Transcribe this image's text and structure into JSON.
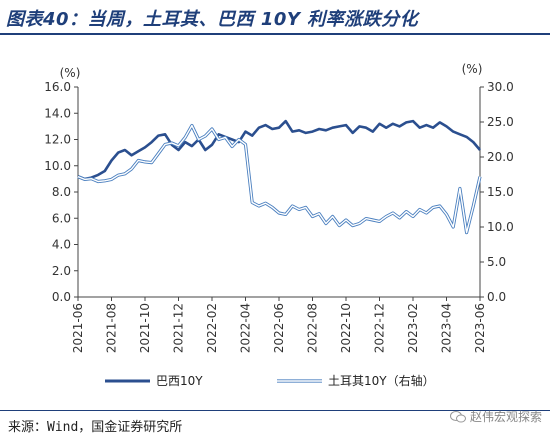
{
  "title": "图表40：当周，土耳其、巴西 10Y 利率涨跌分化",
  "source": "来源：Wind，国金证券研究所",
  "watermark": "赵伟宏观探索",
  "colors": {
    "primary": "#2b4f8f",
    "secondary": "#8fc0e6",
    "accent": "#1f3f7a"
  },
  "chart_data": {
    "type": "line",
    "x_ticks": [
      "2021-06",
      "2021-08",
      "2021-10",
      "2021-12",
      "2022-02",
      "2022-04",
      "2022-06",
      "2022-08",
      "2022-10",
      "2022-12",
      "2023-02",
      "2023-04",
      "2023-06"
    ],
    "left_axis": {
      "unit": "(%)",
      "ylim": [
        0,
        16
      ],
      "ticks": [
        "0.0",
        "2.0",
        "4.0",
        "6.0",
        "8.0",
        "10.0",
        "12.0",
        "14.0",
        "16.0"
      ]
    },
    "right_axis": {
      "unit": "(%)",
      "ylim": [
        0,
        30
      ],
      "ticks": [
        "0.0",
        "5.0",
        "10.0",
        "15.0",
        "20.0",
        "25.0",
        "30.0"
      ]
    },
    "series": [
      {
        "name": "巴西10Y",
        "axis": "left",
        "x": [
          0,
          0.2,
          0.4,
          0.6,
          0.8,
          1.0,
          1.2,
          1.4,
          1.6,
          1.8,
          2.0,
          2.2,
          2.4,
          2.6,
          2.8,
          3.0,
          3.2,
          3.4,
          3.6,
          3.8,
          4.0,
          4.2,
          4.4,
          4.6,
          4.8,
          5.0,
          5.2,
          5.4,
          5.6,
          5.8,
          6.0,
          6.2,
          6.4,
          6.6,
          6.8,
          7.0,
          7.2,
          7.4,
          7.6,
          7.8,
          8.0,
          8.2,
          8.4,
          8.6,
          8.8,
          9.0,
          9.2,
          9.4,
          9.6,
          9.8,
          10.0,
          10.2,
          10.4,
          10.6,
          10.8,
          11.0,
          11.2,
          11.4,
          11.6,
          11.8,
          12.0
        ],
        "values": [
          9.2,
          9.0,
          9.1,
          9.3,
          9.6,
          10.4,
          11.0,
          11.2,
          10.8,
          11.1,
          11.4,
          11.8,
          12.3,
          12.4,
          11.6,
          11.2,
          11.8,
          11.5,
          12.0,
          11.2,
          11.6,
          12.4,
          12.2,
          12.0,
          11.8,
          12.6,
          12.3,
          12.9,
          13.1,
          12.8,
          12.9,
          13.4,
          12.6,
          12.7,
          12.5,
          12.6,
          12.8,
          12.7,
          12.9,
          13.0,
          13.1,
          12.5,
          13.0,
          12.9,
          12.6,
          13.2,
          12.9,
          13.2,
          13.0,
          13.3,
          13.4,
          12.9,
          13.1,
          12.9,
          13.3,
          13.0,
          12.6,
          12.4,
          12.2,
          11.8,
          11.2
        ]
      },
      {
        "name": "土耳其10Y（右轴）",
        "axis": "right",
        "x": [
          0,
          0.2,
          0.4,
          0.6,
          0.8,
          1.0,
          1.2,
          1.4,
          1.6,
          1.8,
          2.0,
          2.2,
          2.4,
          2.6,
          2.8,
          3.0,
          3.2,
          3.4,
          3.6,
          3.8,
          4.0,
          4.2,
          4.4,
          4.6,
          4.8,
          5.0,
          5.2,
          5.4,
          5.6,
          5.8,
          6.0,
          6.2,
          6.4,
          6.6,
          6.8,
          7.0,
          7.2,
          7.4,
          7.6,
          7.8,
          8.0,
          8.2,
          8.4,
          8.6,
          8.8,
          9.0,
          9.2,
          9.4,
          9.6,
          9.8,
          10.0,
          10.2,
          10.4,
          10.6,
          10.8,
          11.0,
          11.2,
          11.4,
          11.6,
          11.8,
          12.0
        ],
        "values": [
          17.2,
          16.8,
          16.9,
          16.5,
          16.6,
          16.8,
          17.4,
          17.6,
          18.3,
          19.5,
          19.3,
          19.2,
          20.5,
          21.8,
          22.0,
          21.6,
          22.8,
          24.5,
          22.5,
          23.0,
          24.0,
          22.5,
          22.8,
          21.5,
          22.5,
          21.8,
          13.5,
          13.0,
          13.4,
          12.8,
          12.0,
          11.8,
          13.0,
          12.5,
          12.8,
          11.5,
          11.9,
          10.5,
          11.5,
          10.2,
          11.0,
          10.2,
          10.5,
          11.2,
          11.0,
          10.8,
          11.5,
          12.0,
          11.3,
          12.2,
          11.5,
          12.5,
          12.0,
          12.8,
          13.0,
          11.8,
          10.0,
          15.5,
          9.2,
          13.0,
          17.2
        ]
      }
    ],
    "legend_position": "bottom"
  }
}
